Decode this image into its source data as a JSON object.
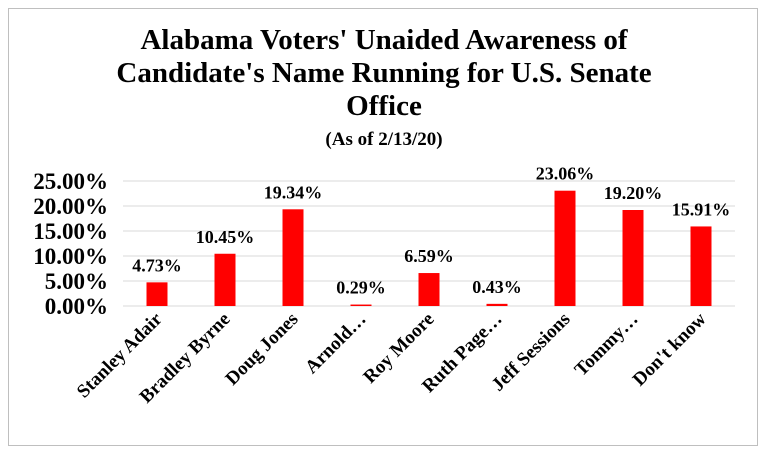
{
  "chart_data": {
    "type": "bar",
    "title_lines": [
      "Alabama Voters' Unaided Awareness of",
      "Candidate's Name Running for U.S. Senate",
      "Office"
    ],
    "subtitle": "(As of 2/13/20)",
    "categories": [
      "Stanley Adair",
      "Bradley Byrne",
      "Doug Jones",
      "Arnold…",
      "Roy Moore",
      "Ruth Page…",
      "Jeff Sessions",
      "Tommy…",
      "Don't know"
    ],
    "values": [
      4.73,
      10.45,
      19.34,
      0.29,
      6.59,
      0.43,
      23.06,
      19.2,
      15.91
    ],
    "data_labels": [
      "4.73%",
      "10.45%",
      "19.34%",
      "0.29%",
      "6.59%",
      "0.43%",
      "23.06%",
      "19.20%",
      "15.91%"
    ],
    "yticks": [
      "0.00%",
      "5.00%",
      "10.00%",
      "15.00%",
      "20.00%",
      "25.00%"
    ],
    "ylim": [
      0,
      25
    ],
    "grid": true,
    "bar_color": "#ff0000",
    "grid_color": "#d9d9d9"
  }
}
